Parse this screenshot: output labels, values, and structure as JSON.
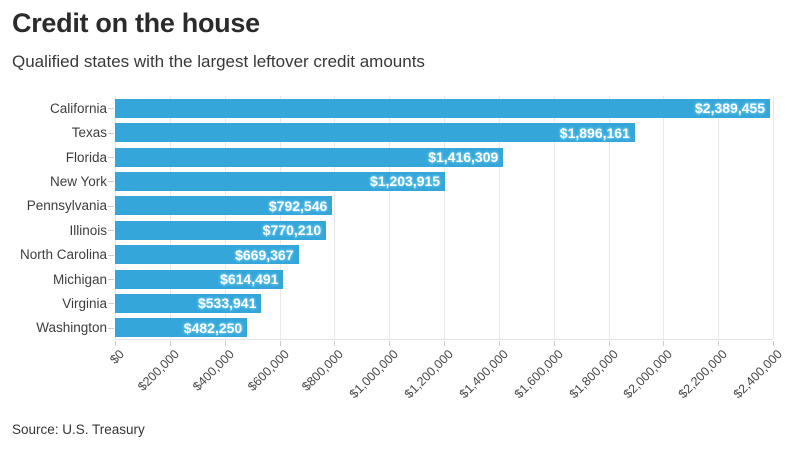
{
  "header": {
    "title": "Credit on the house",
    "subtitle": "Qualified states with the largest leftover credit amounts"
  },
  "chart_data": {
    "type": "bar",
    "orientation": "horizontal",
    "title": "Credit on the house",
    "subtitle": "Qualified states with the largest leftover credit amounts",
    "categories": [
      "California",
      "Texas",
      "Florida",
      "New York",
      "Pennsylvania",
      "Illinois",
      "North Carolina",
      "Michigan",
      "Virginia",
      "Washington"
    ],
    "values": [
      2389455,
      1896161,
      1416309,
      1203915,
      792546,
      770210,
      669367,
      614491,
      533941,
      482250
    ],
    "value_labels": [
      "$2,389,455",
      "$1,896,161",
      "$1,416,309",
      "$1,203,915",
      "$792,546",
      "$770,210",
      "$669,367",
      "$614,491",
      "$533,941",
      "$482,250"
    ],
    "xlim": [
      0,
      2400000
    ],
    "x_tick_values": [
      0,
      200000,
      400000,
      600000,
      800000,
      1000000,
      1200000,
      1400000,
      1600000,
      1800000,
      2000000,
      2200000,
      2400000
    ],
    "x_tick_labels": [
      "$0",
      "$200,000",
      "$400,000",
      "$600,000",
      "$800,000",
      "$1,000,000",
      "$1,200,000",
      "$1,400,000",
      "$1,600,000",
      "$1,800,000",
      "$2,000,000",
      "$2,200,000",
      "$2,400,000"
    ],
    "grid": true,
    "legend": "none",
    "colors": {
      "bar": "#35a6d9",
      "bar_label_text": "#ffffff",
      "bar_label_halo": "#5fc0ea",
      "gridline": "#e8e8e8",
      "tick": "#cccccc",
      "title_text": "#2b2b2b",
      "axis_text": "#474747"
    }
  },
  "footer": {
    "source": "Source: U.S. Treasury"
  }
}
